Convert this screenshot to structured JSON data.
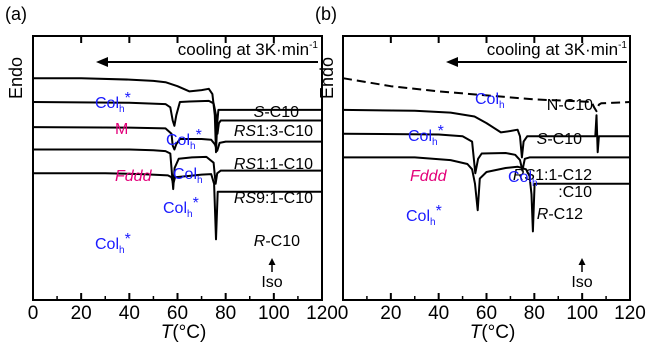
{
  "chart_data": [
    {
      "type": "line",
      "panel_label": "(a)",
      "ylabel": "Endo",
      "xlabel_italic": "T",
      "xlabel_unit": "(°C)",
      "xlim": [
        0,
        120
      ],
      "x_ticks": [
        "0",
        "20",
        "40",
        "60",
        "80",
        "100",
        "120"
      ],
      "arrow_label": "cooling at 3K·min",
      "arrow_superscript": "-1",
      "iso_label": "Iso",
      "series": [
        {
          "name": "S-C10",
          "label_prefix": "S",
          "label_suffix": "-C10",
          "points": [
            [
              0,
              16
            ],
            [
              20,
              16
            ],
            [
              40,
              16.5
            ],
            [
              50,
              17
            ],
            [
              55,
              17.5
            ],
            [
              60,
              19
            ],
            [
              65,
              21
            ],
            [
              70,
              20.5
            ],
            [
              73,
              20
            ],
            [
              74.5,
              22
            ],
            [
              75.5,
              30
            ],
            [
              76,
              44
            ],
            [
              76.5,
              33
            ],
            [
              77,
              28
            ],
            [
              80,
              28
            ],
            [
              120,
              28
            ]
          ]
        },
        {
          "name": "RS1:3-C10",
          "label_prefix": "RS",
          "label_suffix": "1:3-C10",
          "points": [
            [
              0,
              25
            ],
            [
              40,
              25.3
            ],
            [
              55,
              25.8
            ],
            [
              57,
              27
            ],
            [
              58,
              32
            ],
            [
              58.7,
              34
            ],
            [
              59.5,
              30
            ],
            [
              61,
              25
            ],
            [
              65,
              24.8
            ],
            [
              73,
              24.6
            ],
            [
              75,
              25.5
            ],
            [
              76,
              30
            ],
            [
              76.6,
              37
            ],
            [
              77.2,
              33
            ],
            [
              78,
              32
            ],
            [
              120,
              32
            ]
          ]
        },
        {
          "name": "RS1:1-C10",
          "label_prefix": "RS",
          "label_suffix": "1:1-C10",
          "points": [
            [
              0,
              34.5
            ],
            [
              40,
              34.7
            ],
            [
              55,
              35
            ],
            [
              57.5,
              37
            ],
            [
              58,
              41.5
            ],
            [
              58.7,
              43
            ],
            [
              59.5,
              41
            ],
            [
              61,
              39
            ],
            [
              70,
              39
            ],
            [
              74,
              39.3
            ],
            [
              75.5,
              41
            ],
            [
              76.5,
              43.5
            ],
            [
              77.5,
              40.5
            ],
            [
              80,
              40
            ],
            [
              120,
              40
            ]
          ]
        },
        {
          "name": "RS9:1-C10",
          "label_prefix": "RS",
          "label_suffix": "9:1-C10",
          "points": [
            [
              0,
              43
            ],
            [
              40,
              43
            ],
            [
              50,
              43.3
            ],
            [
              55,
              43.6
            ],
            [
              57,
              44.5
            ],
            [
              58.2,
              58
            ],
            [
              58.8,
              50
            ],
            [
              60.5,
              46.5
            ],
            [
              66,
              46
            ],
            [
              72,
              45.8
            ],
            [
              75,
              48
            ],
            [
              75.8,
              56
            ],
            [
              76.5,
              52
            ],
            [
              78,
              51
            ],
            [
              120,
              51
            ]
          ]
        },
        {
          "name": "R-C10",
          "label_prefix": "R",
          "label_suffix": "-C10",
          "points": [
            [
              0,
              52
            ],
            [
              30,
              52
            ],
            [
              45,
              52.3
            ],
            [
              56,
              52.8
            ],
            [
              57.5,
              53.5
            ],
            [
              58.2,
              56
            ],
            [
              59,
              53.5
            ],
            [
              65,
              53
            ],
            [
              70,
              52.5
            ],
            [
              74,
              52.3
            ],
            [
              75.2,
              56
            ],
            [
              76,
              77
            ],
            [
              76.7,
              59
            ],
            [
              78,
              59
            ],
            [
              120,
              59
            ]
          ]
        }
      ],
      "phase_labels": [
        {
          "text": "Col",
          "sub": "h",
          "star": true,
          "color": "#1a1aff"
        },
        {
          "text": "M",
          "sub": "",
          "star": false,
          "color": "#e3007a"
        },
        {
          "text": "Col",
          "sub": "h",
          "star": true,
          "color": "#1a1aff"
        },
        {
          "text": "Fddd",
          "sub": "",
          "star": false,
          "color": "#e3007a",
          "italic": true
        },
        {
          "text": "Col",
          "sub": "h",
          "star": false,
          "color": "#1a1aff"
        },
        {
          "text": "Col",
          "sub": "h",
          "star": true,
          "color": "#1a1aff"
        },
        {
          "text": "Col",
          "sub": "h",
          "star": true,
          "color": "#1a1aff"
        }
      ]
    },
    {
      "type": "line",
      "panel_label": "(b)",
      "ylabel": "Endo",
      "xlabel_italic": "T",
      "xlabel_unit": "(°C)",
      "xlim": [
        0,
        120
      ],
      "x_ticks": [
        "0",
        "20",
        "40",
        "60",
        "80",
        "100",
        "120"
      ],
      "arrow_label": "cooling at 3K·min",
      "arrow_superscript": "-1",
      "iso_label": "Iso",
      "series": [
        {
          "name": "N-C10",
          "label_prefix": "",
          "label_suffix": "N-C10",
          "dashed": true,
          "points": [
            [
              0,
              16
            ],
            [
              20,
              19
            ],
            [
              40,
              21
            ],
            [
              60,
              22.5
            ],
            [
              80,
              24
            ],
            [
              100,
              24.8
            ],
            [
              104,
              25
            ],
            [
              105,
              27
            ],
            [
              106,
              28.5
            ],
            [
              107,
              26
            ],
            [
              108,
              25.5
            ],
            [
              120,
              25
            ]
          ]
        },
        {
          "name": "S-C10",
          "label_prefix": "S",
          "label_suffix": "-C10",
          "points": [
            [
              0,
              28
            ],
            [
              30,
              28.3
            ],
            [
              45,
              29
            ],
            [
              55,
              30.5
            ],
            [
              60,
              33
            ],
            [
              66,
              36.5
            ],
            [
              70,
              36
            ],
            [
              73,
              35.5
            ],
            [
              74,
              38
            ],
            [
              74.8,
              46
            ],
            [
              75.5,
              40
            ],
            [
              77,
              38
            ],
            [
              80,
              38
            ],
            [
              100,
              38
            ],
            [
              105.5,
              38
            ],
            [
              106,
              30
            ],
            [
              106.5,
              44
            ],
            [
              107,
              38
            ],
            [
              120,
              38
            ]
          ]
        },
        {
          "name": "RS1:1-C12:C10",
          "label_prefix": "RS",
          "label_suffix": "1:1-C12",
          "label_line2": ":C10",
          "points": [
            [
              0,
              37
            ],
            [
              40,
              37.3
            ],
            [
              50,
              38
            ],
            [
              54,
              40
            ],
            [
              55.3,
              52
            ],
            [
              56.5,
              46.5
            ],
            [
              58,
              44.5
            ],
            [
              68,
              44.3
            ],
            [
              72,
              45
            ],
            [
              74,
              47
            ],
            [
              75,
              51
            ],
            [
              76,
              46.5
            ],
            [
              78,
              46
            ],
            [
              120,
              46
            ]
          ]
        },
        {
          "name": "R-C12",
          "label_prefix": "R",
          "label_suffix": "-C12",
          "points": [
            [
              0,
              46
            ],
            [
              30,
              46
            ],
            [
              45,
              47
            ],
            [
              52,
              48.5
            ],
            [
              54,
              50.5
            ],
            [
              55.2,
              56
            ],
            [
              56.3,
              66
            ],
            [
              57.2,
              54
            ],
            [
              60,
              51.5
            ],
            [
              68,
              50
            ],
            [
              73,
              49.5
            ],
            [
              76.5,
              50.5
            ],
            [
              78,
              53
            ],
            [
              78.8,
              60
            ],
            [
              79.4,
              74
            ],
            [
              80.1,
              56
            ],
            [
              81,
              56
            ],
            [
              120,
              56
            ]
          ]
        }
      ],
      "phase_labels": [
        {
          "text": "Col",
          "sub": "h",
          "star": false,
          "color": "#1a1aff"
        },
        {
          "text": "Col",
          "sub": "h",
          "star": true,
          "color": "#1a1aff"
        },
        {
          "text": "Fddd",
          "sub": "",
          "star": false,
          "color": "#e3007a",
          "italic": true
        },
        {
          "text": "Col",
          "sub": "h",
          "star": false,
          "color": "#1a1aff"
        },
        {
          "text": "Col",
          "sub": "h",
          "star": true,
          "color": "#1a1aff"
        }
      ]
    }
  ]
}
